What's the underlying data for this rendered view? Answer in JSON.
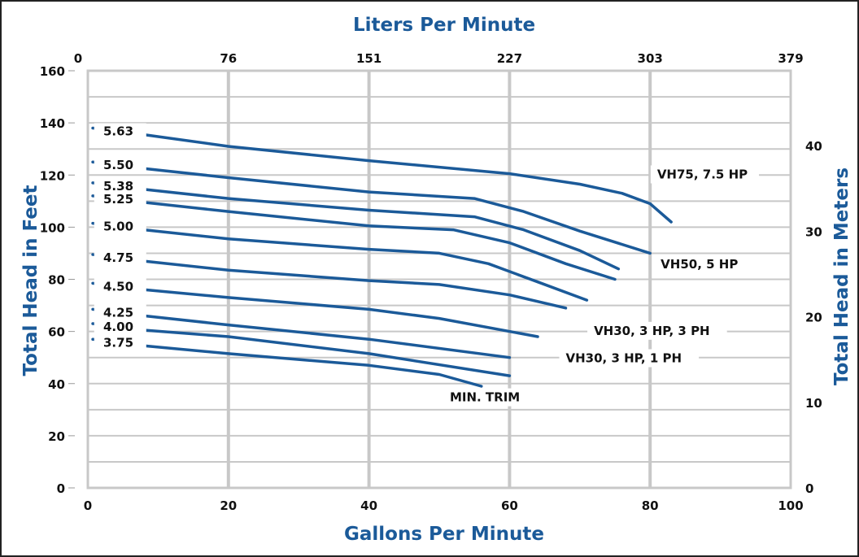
{
  "chart_data": {
    "type": "line",
    "xlabel": "Gallons Per Minute",
    "xlim": [
      0,
      100
    ],
    "x_ticks": [
      "0",
      "20",
      "40",
      "60",
      "80",
      "100"
    ],
    "x2label": "Liters Per Minute",
    "x2_ticks": [
      "0",
      "76",
      "151",
      "227",
      "303",
      "379"
    ],
    "ylabel": "Total Head in Feet",
    "ylim": [
      0,
      160
    ],
    "y_ticks": [
      "0",
      "20",
      "40",
      "60",
      "80",
      "100",
      "120",
      "140",
      "160"
    ],
    "y2label": "Total Head in Meters",
    "y2_ticks": [
      "0",
      "10",
      "20",
      "30",
      "40"
    ],
    "grid": true,
    "line_color": "#1b5a99",
    "series": [
      {
        "trim": "5.63",
        "x": [
          8,
          20,
          40,
          60,
          70,
          76,
          80,
          83
        ],
        "y": [
          135.5,
          131,
          125.5,
          120.5,
          116.5,
          113,
          109,
          102
        ]
      },
      {
        "trim": "5.50",
        "x": [
          8,
          20,
          40,
          55,
          62,
          70,
          80
        ],
        "y": [
          122.5,
          119,
          113.5,
          111,
          106,
          98.5,
          90
        ]
      },
      {
        "trim": "5.38",
        "x": [
          8,
          20,
          40,
          55,
          62,
          70,
          75.5
        ],
        "y": [
          114.5,
          111,
          106.5,
          104,
          99,
          91,
          84
        ]
      },
      {
        "trim": "5.25",
        "x": [
          8,
          20,
          40,
          52,
          60,
          68,
          75
        ],
        "y": [
          109.5,
          106,
          100.5,
          99,
          94,
          86,
          80
        ]
      },
      {
        "trim": "5.00",
        "x": [
          8,
          20,
          40,
          50,
          57,
          64,
          71
        ],
        "y": [
          99,
          95.5,
          91.5,
          90,
          86,
          79,
          72
        ]
      },
      {
        "trim": "4.75",
        "x": [
          8,
          20,
          40,
          50,
          60,
          68
        ],
        "y": [
          87,
          83.5,
          79.5,
          78,
          74,
          69
        ]
      },
      {
        "trim": "4.50",
        "x": [
          8,
          20,
          40,
          50,
          64
        ],
        "y": [
          76,
          73,
          68.5,
          65,
          58
        ]
      },
      {
        "trim": "4.25",
        "x": [
          8,
          20,
          40,
          60
        ],
        "y": [
          66,
          62.5,
          57,
          50
        ]
      },
      {
        "trim": "4.00",
        "x": [
          8,
          20,
          40,
          60
        ],
        "y": [
          60.5,
          58,
          51.5,
          43
        ]
      },
      {
        "trim": "3.75",
        "x": [
          8,
          20,
          40,
          50,
          56
        ],
        "y": [
          54.5,
          51.5,
          47,
          43.5,
          39
        ]
      }
    ],
    "annotations": [
      {
        "text": "VH75, 7.5 HP",
        "x": 81,
        "y": 119
      },
      {
        "text": "VH50, 5 HP",
        "x": 81.5,
        "y": 84.5
      },
      {
        "text": "VH30, 3 HP, 3 PH",
        "x": 72,
        "y": 59
      },
      {
        "text": "VH30, 3 HP, 1 PH",
        "x": 68,
        "y": 48.5
      },
      {
        "text": "MIN. TRIM",
        "x": 51.5,
        "y": 33.5
      }
    ]
  }
}
